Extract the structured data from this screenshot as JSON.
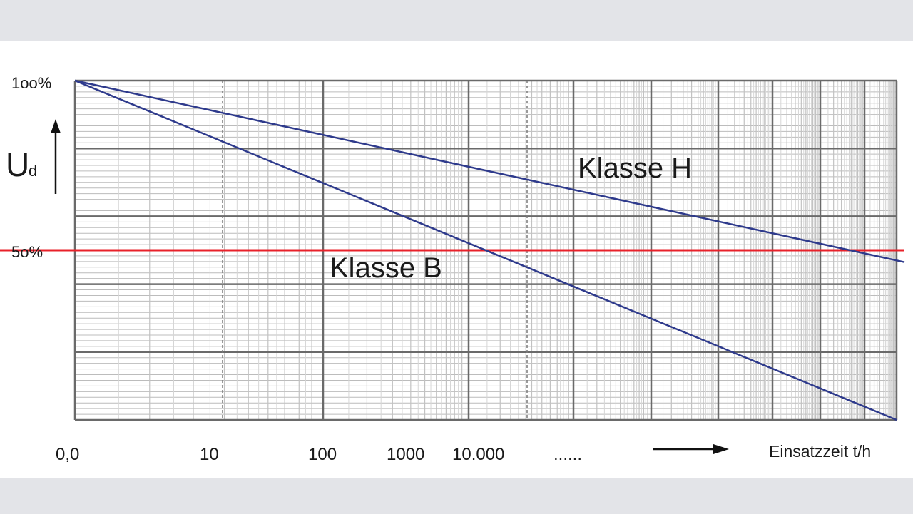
{
  "chart_data": {
    "type": "line",
    "title": "",
    "xlabel": "Einsatzzeit t/h",
    "ylabel": "U",
    "ylabel_sub": "d",
    "x_ticks": [
      "0,0",
      "10",
      "100",
      "1000",
      "10.000",
      "......"
    ],
    "y_ticks": [
      "1oo%",
      "5o%"
    ],
    "ylim": [
      0,
      100
    ],
    "grid": true,
    "reference_line": {
      "y": 50,
      "color": "#e8212a"
    },
    "series": [
      {
        "name": "Klasse H",
        "color": "#2e3a8c",
        "x_frac": [
          0,
          1
        ],
        "values": [
          100,
          47
        ]
      },
      {
        "name": "Klasse B",
        "color": "#2e3a8c",
        "x_frac": [
          0,
          1
        ],
        "values": [
          100,
          0
        ]
      }
    ]
  }
}
